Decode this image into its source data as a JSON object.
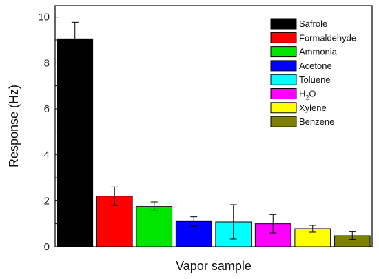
{
  "chart_data": {
    "type": "bar",
    "title": "",
    "xlabel": "Vapor sample",
    "ylabel": "Response (Hz)",
    "ylim": [
      0,
      10.5
    ],
    "yticks": [
      0,
      2,
      4,
      6,
      8,
      10
    ],
    "grid": false,
    "legend_position": "top-right",
    "categories": [
      "Safrole",
      "Formaldehyde",
      "Ammonia",
      "Acetone",
      "Toluene",
      "H2O",
      "Xylene",
      "Benzene"
    ],
    "legend_labels": [
      {
        "main": "Safrole",
        "sub": "",
        "tail": ""
      },
      {
        "main": "Formaldehyde",
        "sub": "",
        "tail": ""
      },
      {
        "main": "Ammonia",
        "sub": "",
        "tail": ""
      },
      {
        "main": "Acetone",
        "sub": "",
        "tail": ""
      },
      {
        "main": "Toluene",
        "sub": "",
        "tail": ""
      },
      {
        "main": "H",
        "sub": "2",
        "tail": "O"
      },
      {
        "main": "Xylene",
        "sub": "",
        "tail": ""
      },
      {
        "main": "Benzene",
        "sub": "",
        "tail": ""
      }
    ],
    "values": [
      9.05,
      2.2,
      1.75,
      1.1,
      1.08,
      1.0,
      0.78,
      0.48
    ],
    "errors": [
      0.72,
      0.4,
      0.2,
      0.2,
      0.75,
      0.4,
      0.15,
      0.17
    ],
    "colors": [
      "#000000",
      "#ff0000",
      "#00e600",
      "#0000ff",
      "#00ffff",
      "#ff00ff",
      "#ffff00",
      "#808000"
    ]
  }
}
